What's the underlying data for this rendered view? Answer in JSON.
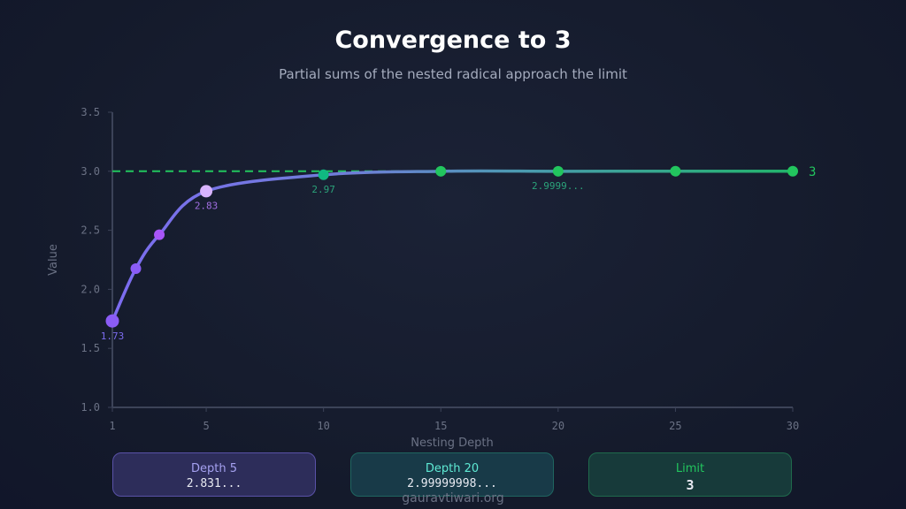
{
  "chart_data": {
    "type": "line",
    "title": "Convergence to 3",
    "subtitle": "Partial sums of the nested radical approach the limit",
    "xlabel": "Nesting Depth",
    "ylabel": "Value",
    "xlim": [
      1,
      30
    ],
    "ylim": [
      1.0,
      3.5
    ],
    "xticks": [
      "1",
      "5",
      "10",
      "15",
      "20",
      "25",
      "30"
    ],
    "yticks": [
      "1.0",
      "1.5",
      "2.0",
      "2.5",
      "3.0",
      "3.5"
    ],
    "limit_line": {
      "value": 3,
      "label": "3",
      "color": "#22c55e",
      "style": "dashed"
    },
    "points": [
      {
        "x": 1,
        "y": 1.732,
        "label": "1.73",
        "color": "#8b5cf6"
      },
      {
        "x": 2,
        "y": 2.175,
        "color": "#8b5cf6"
      },
      {
        "x": 3,
        "y": 2.462,
        "color": "#a855f7"
      },
      {
        "x": 5,
        "y": 2.831,
        "label": "2.83",
        "color": "#d8b4fe"
      },
      {
        "x": 10,
        "y": 2.97,
        "label": "2.97",
        "color": "#10b981"
      },
      {
        "x": 15,
        "y": 2.9999,
        "color": "#22c55e"
      },
      {
        "x": 20,
        "y": 2.9999,
        "label": "2.9999...",
        "color": "#22c55e"
      },
      {
        "x": 25,
        "y": 3.0,
        "color": "#22c55e"
      },
      {
        "x": 30,
        "y": 3.0,
        "color": "#22c55e"
      }
    ],
    "grid": false
  },
  "cards": [
    {
      "label": "Depth 5",
      "value": "2.831...",
      "color": "#a5a1f0"
    },
    {
      "label": "Depth 20",
      "value": "2.99999998...",
      "color": "#5eead4"
    },
    {
      "label": "Limit",
      "value": "3",
      "color": "#22c55e"
    }
  ],
  "watermark": "gauravtiwari.org"
}
